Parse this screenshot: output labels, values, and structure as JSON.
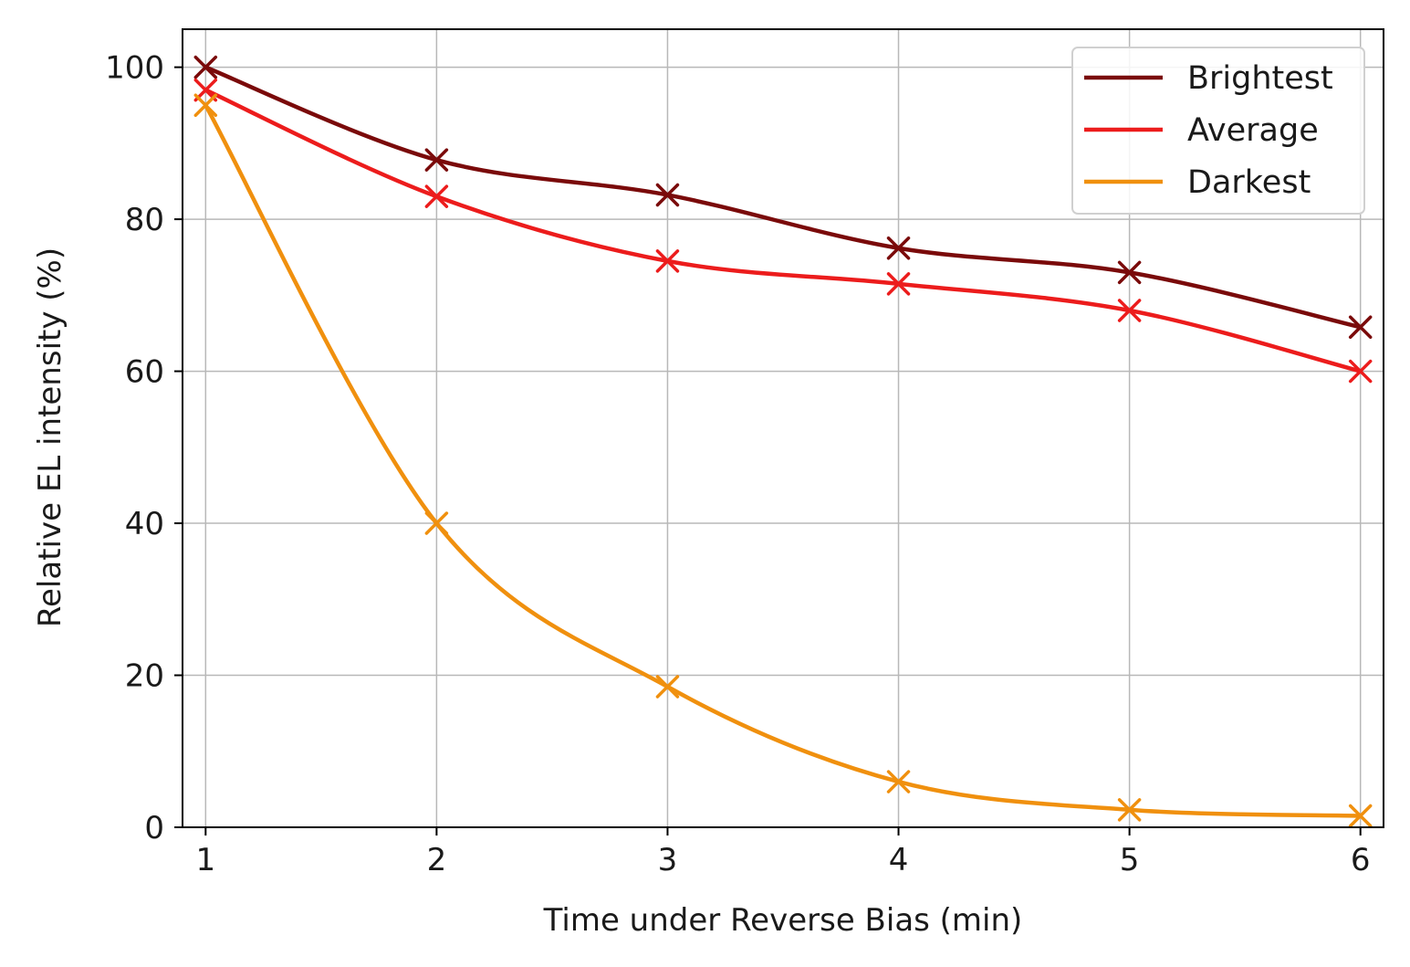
{
  "chart_data": {
    "type": "line",
    "title": "",
    "xlabel": "Time under Reverse Bias (min)",
    "ylabel": "Relative EL intensity (%)",
    "xlim": [
      0.9,
      6.1
    ],
    "ylim": [
      0,
      105
    ],
    "xticks": [
      1,
      2,
      3,
      4,
      5,
      6
    ],
    "yticks": [
      0,
      20,
      40,
      60,
      80,
      100
    ],
    "grid": true,
    "legend_position": "top-right",
    "marker": "x",
    "series": [
      {
        "name": "Brightest",
        "color": "#7a0a0a",
        "x": [
          1,
          2,
          3,
          4,
          5,
          6
        ],
        "y": [
          100,
          87.8,
          83.2,
          76.2,
          73.0,
          65.8
        ]
      },
      {
        "name": "Average",
        "color": "#ec1c1c",
        "x": [
          1,
          2,
          3,
          4,
          5,
          6
        ],
        "y": [
          97.0,
          83.0,
          74.5,
          71.5,
          68.0,
          60.0
        ]
      },
      {
        "name": "Darkest",
        "color": "#f0900e",
        "x": [
          1,
          2,
          3,
          4,
          5,
          6
        ],
        "y": [
          95.0,
          40.0,
          18.5,
          6.0,
          2.3,
          1.5
        ]
      }
    ]
  }
}
